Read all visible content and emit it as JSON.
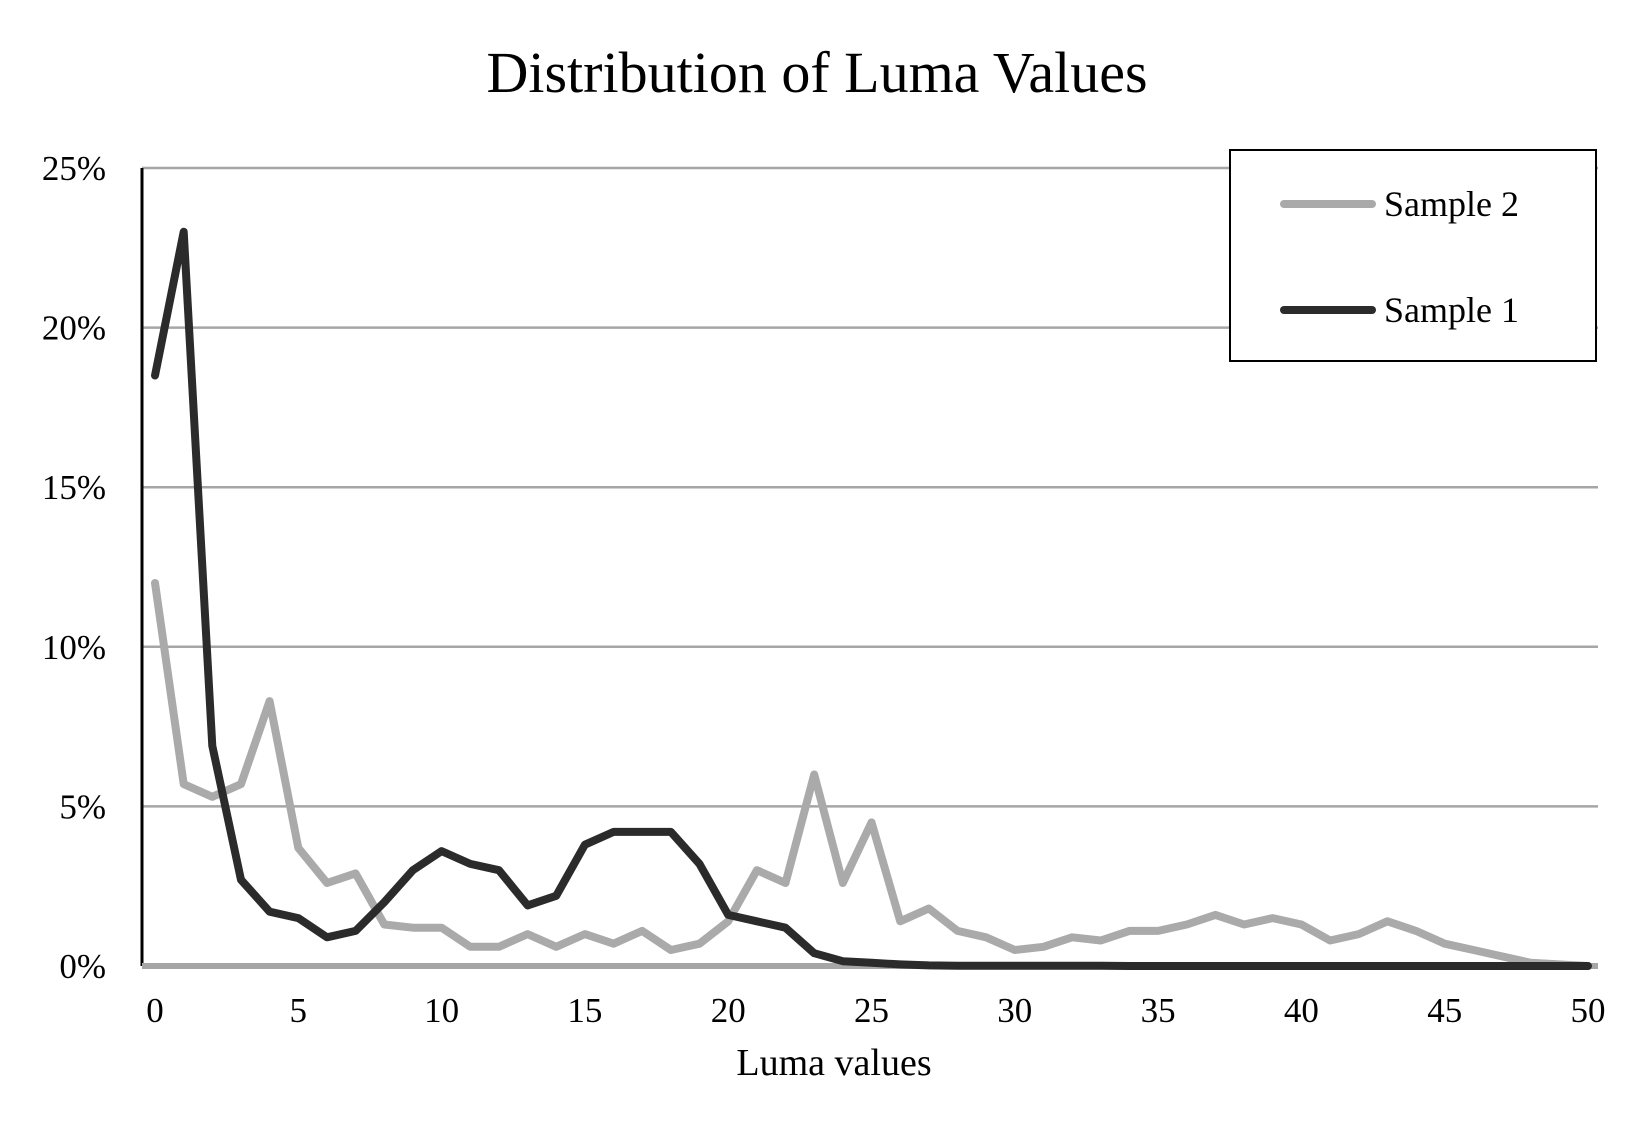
{
  "chart_data": {
    "type": "line",
    "title": "Distribution of Luma Values",
    "xlabel": "Luma values",
    "ylabel": "",
    "xlim": [
      0,
      50
    ],
    "ylim": [
      0,
      25
    ],
    "x_ticks": [
      "0",
      "5",
      "10",
      "15",
      "20",
      "25",
      "30",
      "35",
      "40",
      "45",
      "50"
    ],
    "y_ticks": [
      "0%",
      "5%",
      "10%",
      "15%",
      "20%",
      "25%"
    ],
    "grid": "horizontal",
    "legend_position": "top-right",
    "x": [
      0,
      1,
      2,
      3,
      4,
      5,
      6,
      7,
      8,
      9,
      10,
      11,
      12,
      13,
      14,
      15,
      16,
      17,
      18,
      19,
      20,
      21,
      22,
      23,
      24,
      25,
      26,
      27,
      28,
      29,
      30,
      31,
      32,
      33,
      34,
      35,
      36,
      37,
      38,
      39,
      40,
      41,
      42,
      43,
      44,
      45,
      46,
      47,
      48,
      49,
      50
    ],
    "series": [
      {
        "name": "Sample 2",
        "color": "#aaaaaa",
        "values": [
          12.0,
          5.7,
          5.3,
          5.7,
          8.3,
          3.7,
          2.6,
          2.9,
          1.3,
          1.2,
          1.2,
          0.6,
          0.6,
          1.0,
          0.6,
          1.0,
          0.7,
          1.1,
          0.5,
          0.7,
          1.4,
          3.0,
          2.6,
          6.0,
          2.6,
          4.5,
          1.4,
          1.8,
          1.1,
          0.9,
          0.5,
          0.6,
          0.9,
          0.8,
          1.1,
          1.1,
          1.3,
          1.6,
          1.3,
          1.5,
          1.3,
          0.8,
          1.0,
          1.4,
          1.1,
          0.7,
          0.5,
          0.3,
          0.1,
          0.05,
          0.0
        ]
      },
      {
        "name": "Sample 1",
        "color": "#2b2b2b",
        "values": [
          18.5,
          23.0,
          6.9,
          2.7,
          1.7,
          1.5,
          0.9,
          1.1,
          2.0,
          3.0,
          3.6,
          3.2,
          3.0,
          1.9,
          2.2,
          3.8,
          4.2,
          4.2,
          4.2,
          3.2,
          1.6,
          1.4,
          1.2,
          0.4,
          0.15,
          0.1,
          0.05,
          0.02,
          0.01,
          0.01,
          0.01,
          0.01,
          0.01,
          0.01,
          0,
          0,
          0,
          0,
          0,
          0,
          0,
          0,
          0,
          0,
          0,
          0,
          0,
          0,
          0,
          0,
          0
        ]
      }
    ],
    "legend_order": [
      "Sample 2",
      "Sample 1"
    ]
  }
}
